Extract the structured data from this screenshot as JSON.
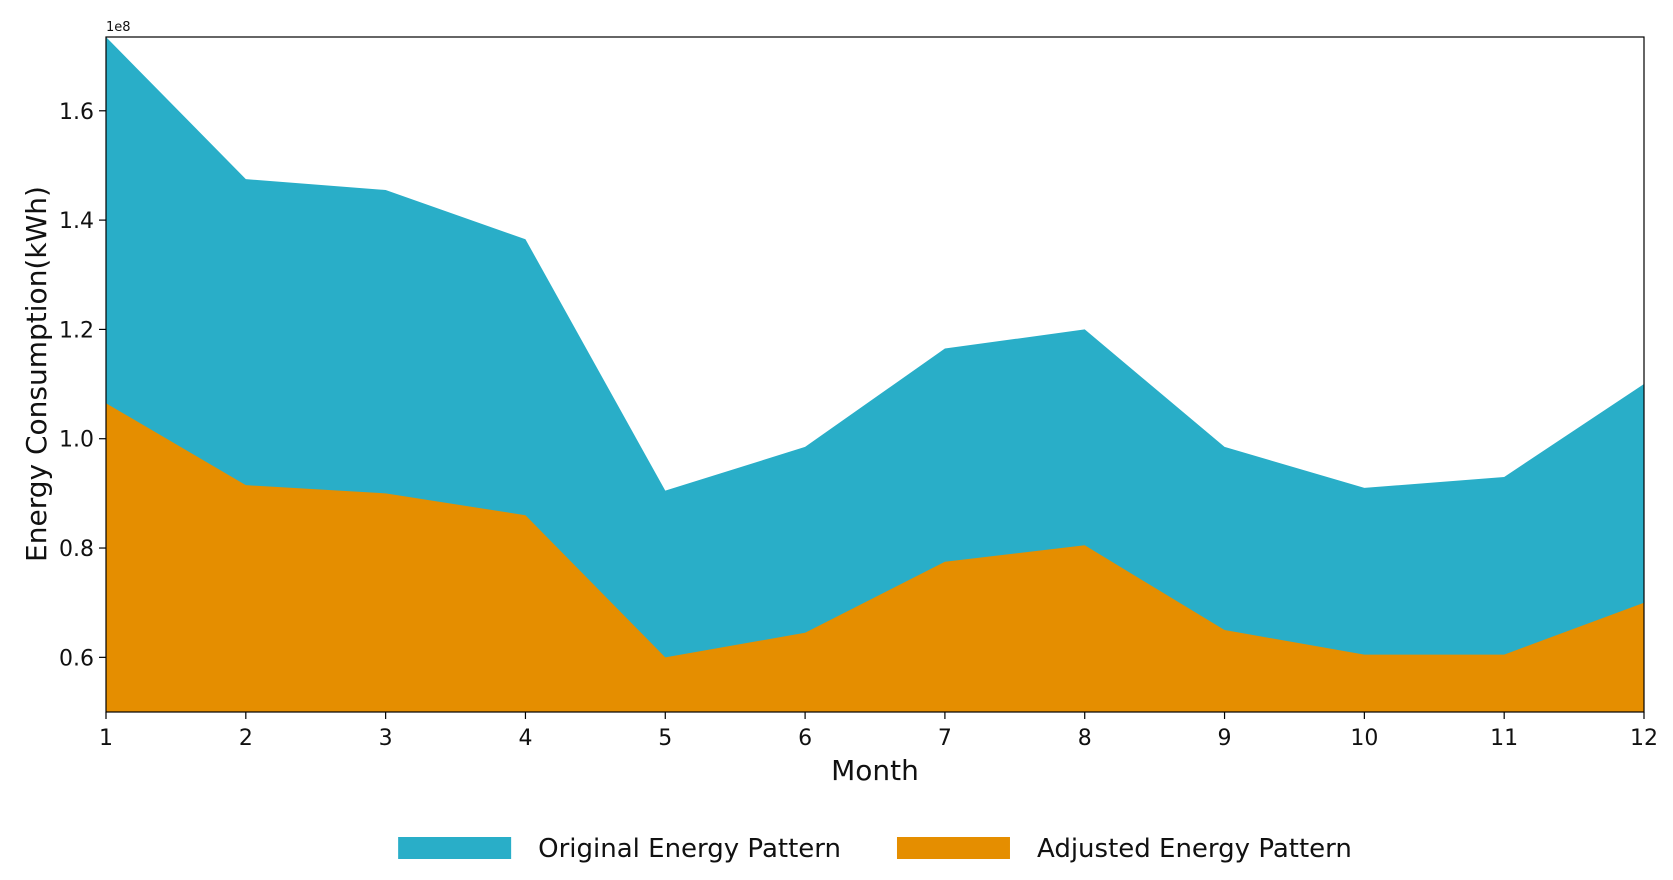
{
  "chart_data": {
    "type": "area",
    "title": "",
    "xlabel": "Month",
    "ylabel": "Energy Consumption(kWh)",
    "y_offset_label": "1e8",
    "y_scale": 100000000,
    "x": [
      1,
      2,
      3,
      4,
      5,
      6,
      7,
      8,
      9,
      10,
      11,
      12
    ],
    "xlim": [
      1,
      12
    ],
    "ylim": [
      0.5,
      1.735
    ],
    "x_ticks": [
      1,
      2,
      3,
      4,
      5,
      6,
      7,
      8,
      9,
      10,
      11,
      12
    ],
    "x_tick_labels": [
      "1",
      "2",
      "3",
      "4",
      "5",
      "6",
      "7",
      "8",
      "9",
      "10",
      "11",
      "12"
    ],
    "y_ticks": [
      0.6,
      0.8,
      1.0,
      1.2,
      1.4,
      1.6
    ],
    "y_tick_labels": [
      "0.6",
      "0.8",
      "1.0",
      "1.2",
      "1.4",
      "1.6"
    ],
    "grid": false,
    "legend_position": "bottom-center",
    "series": [
      {
        "name": "Original Energy Pattern",
        "color": "#29aec8",
        "values": [
          1.735,
          1.475,
          1.455,
          1.365,
          0.905,
          0.985,
          1.165,
          1.2,
          0.985,
          0.91,
          0.93,
          1.1
        ]
      },
      {
        "name": "Adjusted Energy Pattern",
        "color": "#e58e00",
        "values": [
          1.065,
          0.915,
          0.9,
          0.86,
          0.6,
          0.645,
          0.775,
          0.805,
          0.65,
          0.605,
          0.605,
          0.7
        ]
      }
    ]
  }
}
